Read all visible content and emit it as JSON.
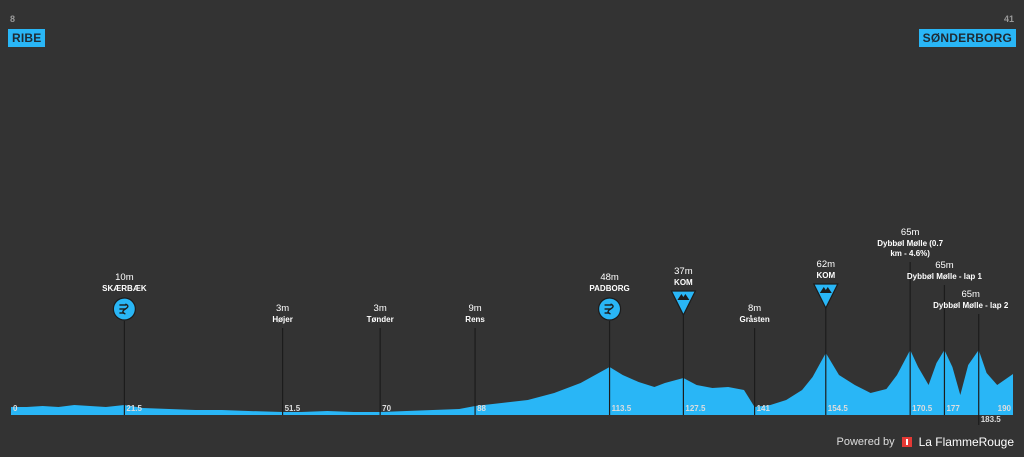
{
  "start": {
    "name": "RIBE",
    "altitude": "8"
  },
  "finish": {
    "name": "SØNDERBORG",
    "altitude": "41"
  },
  "footer": {
    "powered_label": "Powered by",
    "brand": "La FlammeRouge"
  },
  "colors": {
    "background": "#333333",
    "profile": "#29b6f6",
    "text": "#ffffff",
    "marker": "#1c1c1c",
    "km_text": "#dddddd"
  },
  "chart_data": {
    "type": "area",
    "title": "",
    "xlabel": "",
    "ylabel": "",
    "xlim": [
      0,
      190
    ],
    "ylim": [
      0,
      400
    ],
    "x": [
      0,
      3,
      6,
      9,
      12,
      15,
      18,
      21.5,
      25,
      30,
      35,
      40,
      45,
      51.5,
      55,
      60,
      65,
      70,
      75,
      80,
      85,
      88,
      93,
      98,
      103,
      108,
      113.5,
      116,
      119,
      122,
      124,
      127.5,
      130,
      133,
      136,
      139,
      141,
      144,
      147,
      150,
      152,
      154.5,
      157,
      160,
      163,
      166,
      168,
      170.5,
      172,
      174,
      175.5,
      177,
      178.5,
      180,
      181.5,
      183.5,
      185,
      187,
      190
    ],
    "y": [
      8,
      8,
      9,
      8,
      10,
      9,
      8,
      10,
      7,
      6,
      5,
      5,
      4,
      3,
      3,
      4,
      3,
      3,
      4,
      5,
      6,
      9,
      12,
      15,
      22,
      32,
      48,
      40,
      33,
      28,
      32,
      37,
      30,
      27,
      28,
      25,
      8,
      10,
      15,
      25,
      38,
      62,
      40,
      30,
      22,
      26,
      40,
      65,
      48,
      30,
      52,
      65,
      48,
      20,
      50,
      65,
      42,
      30,
      41
    ],
    "km_ticks": [
      {
        "km": 0,
        "label": "0"
      },
      {
        "km": 21.5,
        "label": "21.5"
      },
      {
        "km": 51.5,
        "label": "51.5"
      },
      {
        "km": 70,
        "label": "70"
      },
      {
        "km": 88,
        "label": "88"
      },
      {
        "km": 113.5,
        "label": "113.5"
      },
      {
        "km": 127.5,
        "label": "127.5"
      },
      {
        "km": 141,
        "label": "141"
      },
      {
        "km": 154.5,
        "label": "154.5"
      },
      {
        "km": 170.5,
        "label": "170.5"
      },
      {
        "km": 177,
        "label": "177"
      },
      {
        "km": 183.5,
        "label": "183.5"
      },
      {
        "km": 190,
        "label": "190"
      }
    ],
    "points": [
      {
        "km": 21.5,
        "alt": "10m",
        "name": [
          "SKÆRBÆK"
        ],
        "type": "sprint",
        "icon": "sprint-icon"
      },
      {
        "km": 51.5,
        "alt": "3m",
        "name": [
          "Højer"
        ],
        "type": "town"
      },
      {
        "km": 70,
        "alt": "3m",
        "name": [
          "Tønder"
        ],
        "type": "town"
      },
      {
        "km": 88,
        "alt": "9m",
        "name": [
          "Rens"
        ],
        "type": "town"
      },
      {
        "km": 113.5,
        "alt": "48m",
        "name": [
          "PADBORG"
        ],
        "type": "sprint",
        "icon": "sprint-icon"
      },
      {
        "km": 127.5,
        "alt": "37m",
        "name": [
          "KOM"
        ],
        "type": "kom",
        "icon": "kom-icon"
      },
      {
        "km": 141,
        "alt": "8m",
        "name": [
          "Gråsten"
        ],
        "type": "town"
      },
      {
        "km": 154.5,
        "alt": "62m",
        "name": [
          "KOM"
        ],
        "type": "kom",
        "icon": "kom-icon"
      },
      {
        "km": 170.5,
        "alt": "65m",
        "name": [
          "Dybbøl Mølle (0.7",
          "km - 4.6%)"
        ],
        "type": "climb"
      },
      {
        "km": 177,
        "alt": "65m",
        "name": [
          "Dybbøl Mølle - lap 1"
        ],
        "type": "climb"
      },
      {
        "km": 183.5,
        "alt": "65m",
        "name": [
          "Dybbøl Mølle - lap 2"
        ],
        "type": "climb"
      }
    ]
  }
}
